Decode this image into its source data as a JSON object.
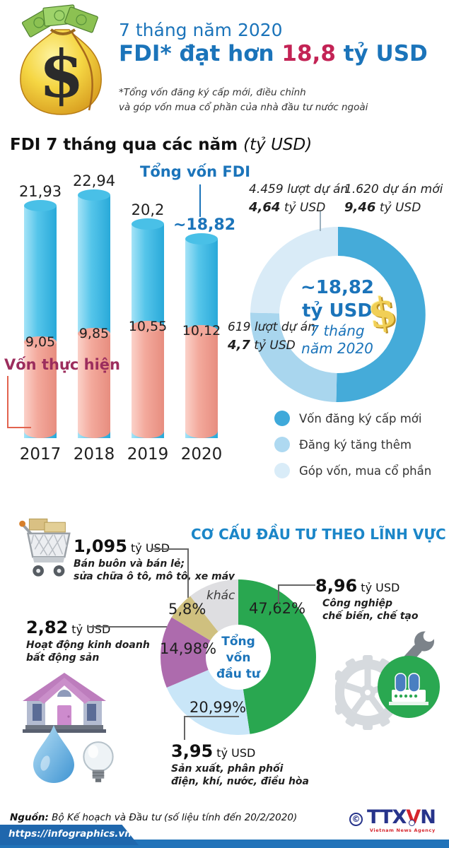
{
  "header": {
    "kicker": "7 tháng năm 2020",
    "title_prefix": "FDI* đạt hơn ",
    "title_value": "18,8",
    "title_suffix": " tỷ USD",
    "note_line1": "*Tổng vốn đăng ký cấp mới, điều chỉnh",
    "note_line2": "và góp vốn mua cổ phần của nhà đầu tư nước ngoài"
  },
  "fdi_chart": {
    "title": "FDI 7 tháng qua các năm ",
    "unit": "(tỷ USD)",
    "total_label": "Tổng vốn FDI",
    "realized_label": "Vốn thực hiện",
    "totals": [
      "21,93",
      "22,94",
      "20,2",
      "~18,82"
    ],
    "realized": [
      "9,05",
      "9,85",
      "10,55",
      "10,12"
    ],
    "years": [
      "2017",
      "2018",
      "2019",
      "2020"
    ]
  },
  "donut": {
    "center_value": "~18,82",
    "center_unit": "tỷ USD",
    "center_sub1": "7 tháng",
    "center_sub2": "năm 2020",
    "callout_share_line1": "4.459 lượt dự án",
    "callout_share_value": "4,64",
    "callout_share_unit": " tỷ USD",
    "callout_new_line1": "1.620  dự án mới",
    "callout_new_value": "9,46",
    "callout_new_unit": " tỷ USD",
    "callout_add_line1": "619 lượt dự án",
    "callout_add_value": "4,7",
    "callout_add_unit": " tỷ USD",
    "legend": [
      {
        "label": "Vốn đăng ký cấp mới",
        "color": "#3fa9da"
      },
      {
        "label": "Đăng ký tăng thêm",
        "color": "#aed9f1"
      },
      {
        "label": "Góp vốn, mua cổ phần",
        "color": "#d9ecf8"
      }
    ]
  },
  "sectors": {
    "title": "CƠ CẤU ĐẦU TƯ THEO LĨNH VỰC",
    "center_line1": "Tổng",
    "center_line2": "vốn",
    "center_line3": "đầu tư",
    "pct_industry": "47,62%",
    "pct_power": "20,99%",
    "pct_realestate": "14,98%",
    "pct_retail": "5,8%",
    "label_other": "khác",
    "retail_value": "1,095",
    "retail_unit": " tỷ USD",
    "retail_desc1": "Bán buôn và bán lẻ;",
    "retail_desc2": "sửa chữa ô tô, mô tô, xe máy",
    "realestate_value": "2,82",
    "realestate_unit": " tỷ USD",
    "realestate_desc1": "Hoạt động kinh doanh",
    "realestate_desc2": "bất động sản",
    "industry_value": "8,96",
    "industry_unit": " tỷ USD",
    "industry_desc1": "Công nghiệp",
    "industry_desc2": "chế biến, chế tạo",
    "power_value": "3,95",
    "power_unit": " tỷ USD",
    "power_desc1": "Sản xuất, phân phối",
    "power_desc2": "điện, khí, nước, điều hòa"
  },
  "footer": {
    "source_label": "Nguồn:",
    "source_text": " Bộ Kế hoạch và Đầu tư (số liệu tính đến 20/2/2020)",
    "url": "https://infographics.vn",
    "copyright": "©",
    "logo_part1": "TTX",
    "logo_part2": "V",
    "logo_part3": "N",
    "logo_sub": "Vietnam News Agency"
  },
  "chart_data": [
    {
      "type": "bar",
      "title": "FDI 7 tháng qua các năm (tỷ USD)",
      "categories": [
        "2017",
        "2018",
        "2019",
        "2020"
      ],
      "series": [
        {
          "name": "Tổng vốn FDI",
          "values": [
            21.93,
            22.94,
            20.2,
            18.82
          ]
        },
        {
          "name": "Vốn thực hiện",
          "values": [
            9.05,
            9.85,
            10.55,
            10.12
          ]
        }
      ],
      "ylabel": "tỷ USD",
      "ylim": [
        0,
        24
      ],
      "grid": false,
      "colors": {
        "total": "#3bbce6",
        "realized": "#f2a89b"
      }
    },
    {
      "type": "pie",
      "subtype": "donut",
      "center_label": "~18,82 tỷ USD 7 tháng năm 2020",
      "labels": [
        "Vốn đăng ký cấp mới",
        "Đăng ký tăng thêm",
        "Góp vốn, mua cổ phần"
      ],
      "values": [
        9.46,
        4.7,
        4.64
      ],
      "unit": "tỷ USD",
      "project_counts": [
        "1.620 dự án mới",
        "619 lượt dự án",
        "4.459 lượt dự án"
      ],
      "colors": [
        "#45abd9",
        "#a9d6ee",
        "#d9ebf7"
      ],
      "legend_position": "bottom-right"
    },
    {
      "type": "pie",
      "subtype": "donut",
      "title": "CƠ CẤU ĐẦU TƯ THEO LĨNH VỰC",
      "center_label": "Tổng vốn đầu tư",
      "labels": [
        "Công nghiệp chế biến, chế tạo",
        "Sản xuất, phân phối điện, khí, nước, điều hòa",
        "Hoạt động kinh doanh bất động sản",
        "Bán buôn và bán lẻ; sửa chữa ô tô, mô tô, xe máy",
        "khác"
      ],
      "values": [
        47.62,
        20.99,
        14.98,
        5.8,
        10.61
      ],
      "values_ty_usd": [
        8.96,
        3.95,
        2.82,
        1.095,
        null
      ],
      "colors": [
        "#29a750",
        "#c9e6f8",
        "#ad6bad",
        "#cfc07f",
        "#dedee1"
      ]
    }
  ]
}
